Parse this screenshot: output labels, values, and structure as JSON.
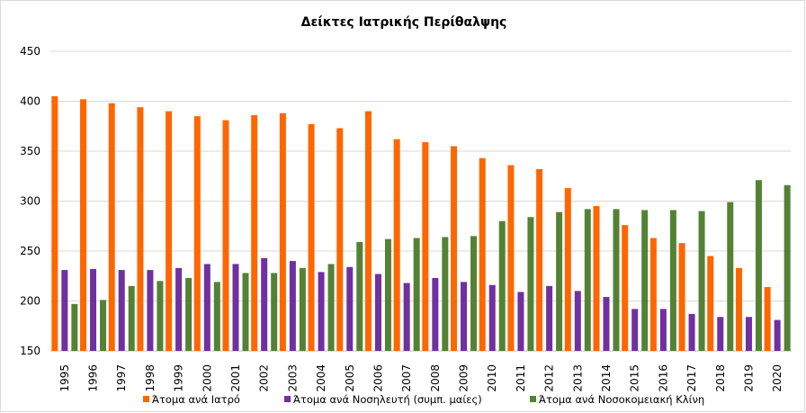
{
  "chart_data": {
    "type": "bar",
    "title": "Δείκτες Ιατρικής Περίθαλψης",
    "xlabel": "",
    "ylabel": "",
    "ylim": [
      150,
      450
    ],
    "yticks": [
      150,
      200,
      250,
      300,
      350,
      400,
      450
    ],
    "grid": true,
    "legend_position": "bottom",
    "categories": [
      "1995",
      "1996",
      "1997",
      "1998",
      "1999",
      "2000",
      "2001",
      "2002",
      "2003",
      "2004",
      "2005",
      "2006",
      "2007",
      "2008",
      "2009",
      "2010",
      "2011",
      "2012",
      "2013",
      "2014",
      "2015",
      "2016",
      "2017",
      "2018",
      "2019",
      "2020"
    ],
    "series": [
      {
        "name": "Άτομα ανά Ιατρό",
        "color": "#ff6600",
        "values": [
          405,
          402,
          398,
          394,
          390,
          385,
          381,
          386,
          388,
          377,
          373,
          390,
          362,
          359,
          355,
          343,
          336,
          332,
          313,
          295,
          276,
          263,
          258,
          245,
          233,
          214
        ]
      },
      {
        "name": "Άτομα ανά Νοσηλευτή (συμπ. μαίες)",
        "color": "#7030a0",
        "values": [
          231,
          232,
          231,
          231,
          233,
          237,
          237,
          243,
          240,
          229,
          234,
          227,
          218,
          223,
          219,
          216,
          209,
          215,
          210,
          204,
          192,
          192,
          187,
          184,
          184,
          181
        ]
      },
      {
        "name": "Άτομα ανά Νοσοκομειακή Κλίνη",
        "color": "#548235",
        "values": [
          197,
          201,
          215,
          220,
          223,
          219,
          228,
          228,
          233,
          237,
          259,
          262,
          263,
          264,
          265,
          280,
          284,
          289,
          292,
          292,
          291,
          291,
          290,
          299,
          321,
          316
        ]
      }
    ]
  }
}
